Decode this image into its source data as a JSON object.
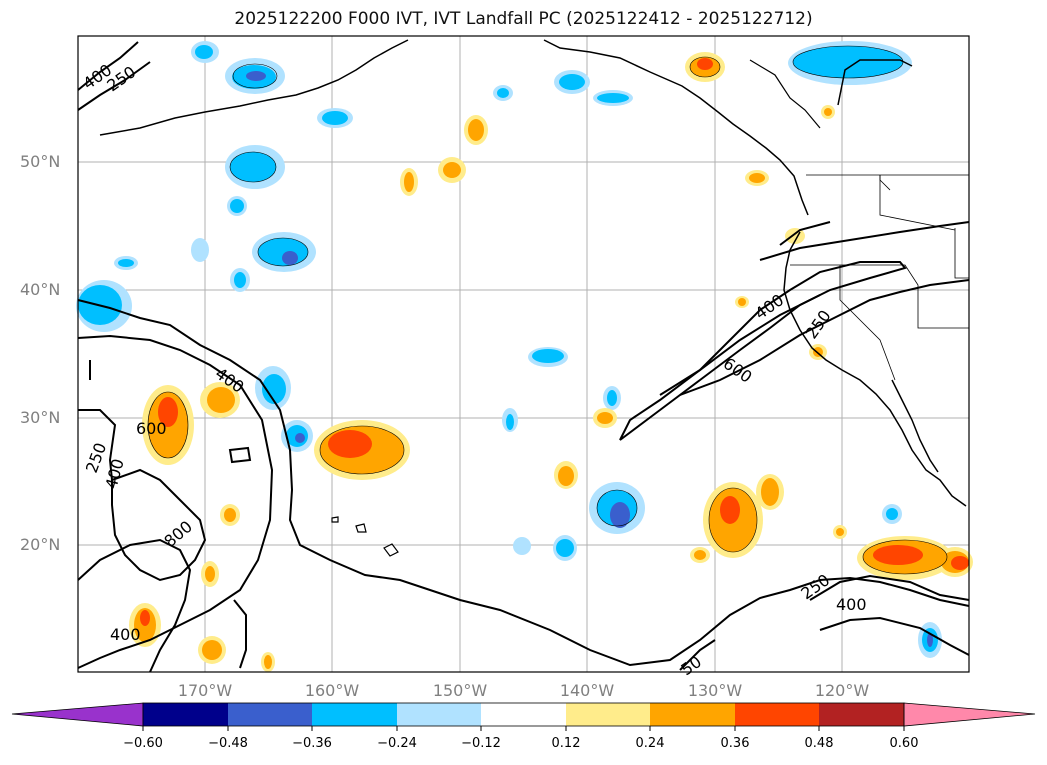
{
  "title": "2025122200 F000 IVT, IVT Landfall PC (2025122412 - 2025122712)",
  "lat_labels": [
    "50°N",
    "40°N",
    "30°N",
    "20°N"
  ],
  "lon_labels": [
    "170°W",
    "160°W",
    "150°W",
    "140°W",
    "130°W",
    "120°W"
  ],
  "contour_labels": [
    "400",
    "250",
    "400",
    "600",
    "250",
    "400",
    "800",
    "400",
    "400",
    "600",
    "250",
    "250",
    "400",
    "50"
  ],
  "colorbar": {
    "ticks": [
      "−0.60",
      "−0.48",
      "−0.36",
      "−0.24",
      "−0.12",
      "0.12",
      "0.24",
      "0.36",
      "0.48",
      "0.60"
    ],
    "colors": [
      "#9932cc",
      "#00008b",
      "#3a5fcd",
      "#00bfff",
      "#b0e2ff",
      "#ffffff",
      "#ffec8b",
      "#ffa500",
      "#ff4500",
      "#b22222",
      "#ff88aa"
    ]
  },
  "colors": {
    "gridline": "#b0b0b0",
    "coast": "#000000",
    "tick_label": "#808080"
  }
}
